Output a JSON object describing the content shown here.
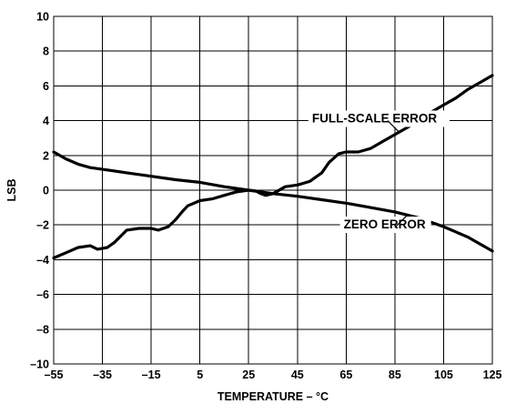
{
  "chart_data": {
    "type": "line",
    "title": "",
    "xlabel": "TEMPERATURE – °C",
    "ylabel": "LSB",
    "xlim": [
      -55,
      125
    ],
    "ylim": [
      -10,
      10
    ],
    "grid": true,
    "x_ticks": [
      -55,
      -35,
      -15,
      5,
      25,
      45,
      65,
      85,
      105,
      125
    ],
    "x_tick_labels": [
      "–55",
      "–35",
      "–15",
      "5",
      "25",
      "45",
      "65",
      "85",
      "105",
      "125"
    ],
    "y_ticks": [
      -10,
      -8,
      -6,
      -4,
      -2,
      0,
      2,
      4,
      6,
      8,
      10
    ],
    "y_tick_labels": [
      "–10",
      "–8",
      "–6",
      "–4",
      "–2",
      "0",
      "2",
      "4",
      "6",
      "8",
      "10"
    ],
    "series": [
      {
        "name": "FULL-SCALE ERROR",
        "x": [
          -55,
          -50,
          -45,
          -40,
          -37,
          -33,
          -30,
          -25,
          -20,
          -15,
          -12,
          -8,
          -5,
          -2,
          0,
          5,
          10,
          15,
          20,
          25,
          28,
          30,
          32,
          35,
          40,
          45,
          50,
          55,
          58,
          62,
          65,
          70,
          75,
          80,
          85,
          90,
          95,
          100,
          105,
          110,
          115,
          120,
          125
        ],
        "y": [
          -3.9,
          -3.6,
          -3.3,
          -3.2,
          -3.4,
          -3.3,
          -3.0,
          -2.3,
          -2.2,
          -2.2,
          -2.3,
          -2.1,
          -1.7,
          -1.2,
          -0.9,
          -0.6,
          -0.5,
          -0.3,
          -0.1,
          0.0,
          -0.05,
          -0.2,
          -0.3,
          -0.2,
          0.2,
          0.3,
          0.5,
          1.0,
          1.6,
          2.1,
          2.2,
          2.2,
          2.4,
          2.8,
          3.2,
          3.6,
          4.0,
          4.5,
          4.9,
          5.3,
          5.8,
          6.2,
          6.6
        ]
      },
      {
        "name": "ZERO ERROR",
        "x": [
          -55,
          -50,
          -45,
          -40,
          -35,
          -25,
          -15,
          -5,
          5,
          15,
          25,
          35,
          45,
          55,
          65,
          75,
          85,
          95,
          105,
          115,
          125
        ],
        "y": [
          2.2,
          1.8,
          1.5,
          1.3,
          1.2,
          1.0,
          0.8,
          0.6,
          0.45,
          0.2,
          0.0,
          -0.2,
          -0.35,
          -0.55,
          -0.75,
          -1.0,
          -1.25,
          -1.6,
          -2.1,
          -2.7,
          -3.5
        ]
      }
    ],
    "annotations": [
      {
        "text": "FULL-SCALE ERROR",
        "target_series": 0
      },
      {
        "text": "ZERO ERROR",
        "target_series": 1
      }
    ]
  }
}
